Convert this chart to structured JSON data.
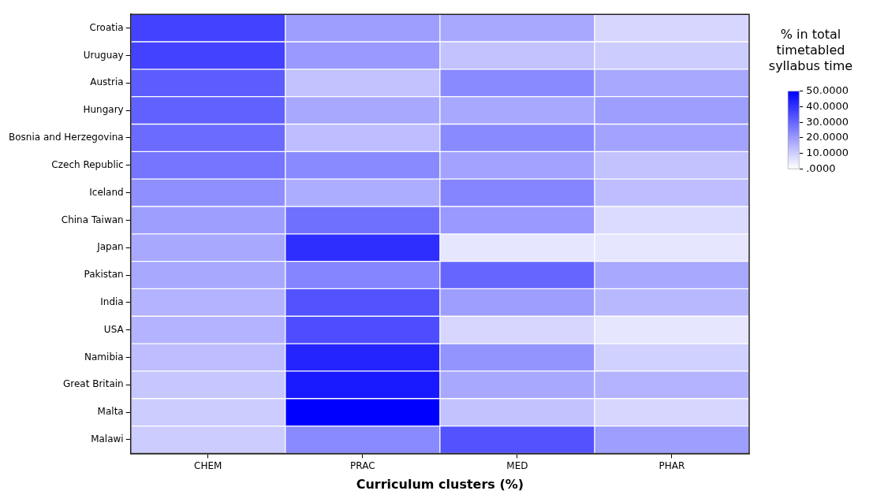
{
  "chart_data": {
    "type": "heatmap",
    "xlabel": "Curriculum clusters (%)",
    "clabel": "% in total timetabled syllabus time",
    "categories": [
      "CHEM",
      "PRAC",
      "MED",
      "PHAR"
    ],
    "y_categories": [
      "Croatia",
      "Uruguay",
      "Austria",
      "Hungary",
      "Bosnia and Herzegovina",
      "Czech Republic",
      "Iceland",
      "China Taiwan",
      "Japan",
      "Pakistan",
      "India",
      "USA",
      "Namibia",
      "Great Britain",
      "Malta",
      "Malawi"
    ],
    "cells": [
      [
        37,
        19,
        17,
        8
      ],
      [
        37,
        20,
        12,
        10
      ],
      [
        32,
        12,
        23,
        17
      ],
      [
        31,
        17,
        17,
        19
      ],
      [
        29,
        13,
        23,
        18
      ],
      [
        27,
        23,
        18,
        12
      ],
      [
        22,
        16,
        24,
        13
      ],
      [
        19,
        28,
        20,
        7
      ],
      [
        17,
        41,
        5,
        5
      ],
      [
        17,
        24,
        30,
        17
      ],
      [
        15,
        34,
        19,
        14
      ],
      [
        15,
        35,
        8,
        5
      ],
      [
        13,
        43,
        21,
        9
      ],
      [
        11,
        45,
        17,
        15
      ],
      [
        10,
        50,
        12,
        8
      ],
      [
        10,
        23,
        34,
        19
      ]
    ],
    "clim": [
      0,
      50
    ],
    "cticks": [
      {
        "value": 50,
        "label": "50.0000"
      },
      {
        "value": 40,
        "label": "40.0000"
      },
      {
        "value": 30,
        "label": "30.0000"
      },
      {
        "value": 20,
        "label": "20.0000"
      },
      {
        "value": 10,
        "label": "10.0000"
      },
      {
        "value": 0,
        "label": ".0000"
      }
    ]
  }
}
